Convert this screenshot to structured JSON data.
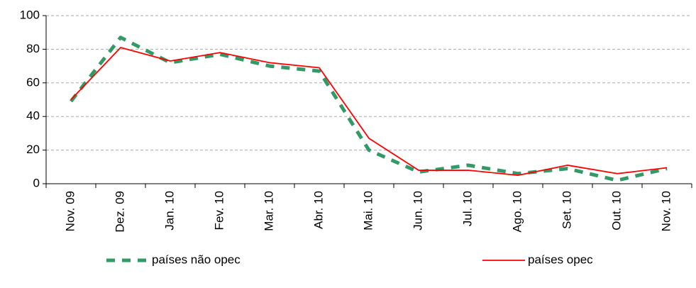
{
  "chart_data": {
    "type": "line",
    "categories": [
      "Nov. 09",
      "Dez. 09",
      "Jan. 10",
      "Fev. 10",
      "Mar. 10",
      "Abr. 10",
      "Mai. 10",
      "Jun. 10",
      "Jul. 10",
      "Ago. 10",
      "Set. 10",
      "Out. 10",
      "Nov. 10"
    ],
    "series": [
      {
        "name": "países não opec",
        "color": "#339966",
        "dashed": true,
        "values": [
          49,
          87,
          72,
          77,
          70,
          67,
          20,
          7,
          11,
          6,
          9,
          2,
          9
        ]
      },
      {
        "name": "países opec",
        "color": "#ff0000",
        "dashed": false,
        "values": [
          50,
          81,
          73,
          78,
          72,
          69,
          27,
          8,
          8,
          5,
          11,
          6,
          9.5
        ]
      }
    ],
    "ylim": [
      0,
      100
    ],
    "yticks": [
      0,
      20,
      40,
      60,
      80,
      100
    ],
    "grid": true,
    "legend": "bottom"
  }
}
